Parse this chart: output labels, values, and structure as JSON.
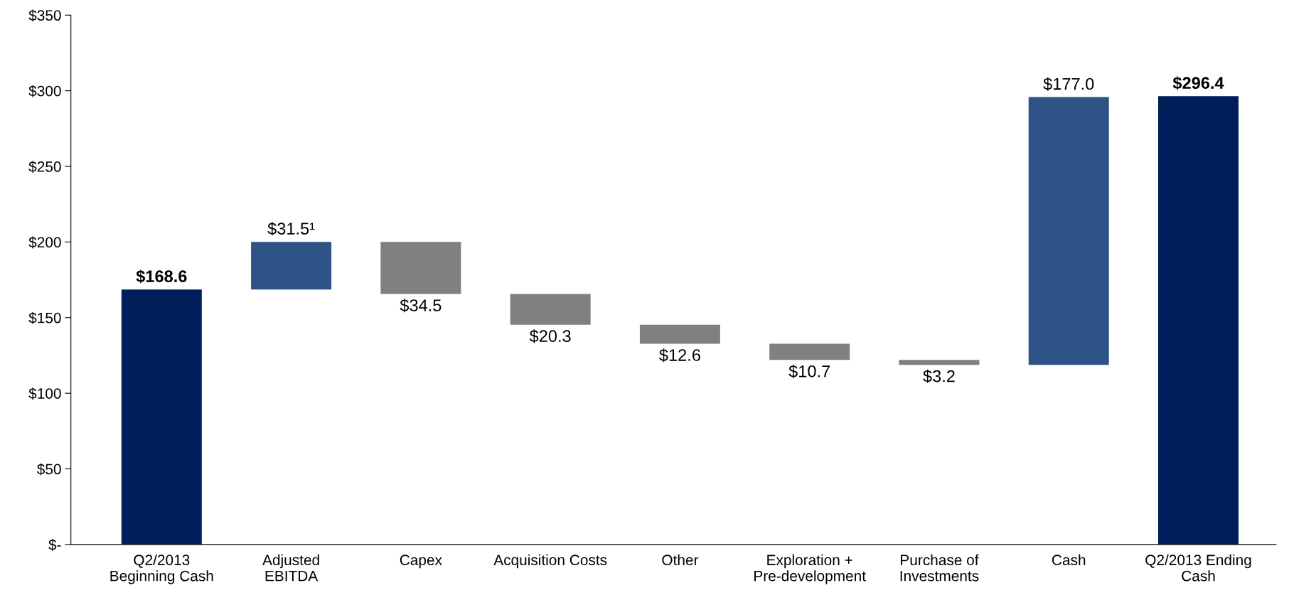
{
  "chart_data": {
    "type": "bar",
    "categories": [
      "Q2/2013\nBeginning Cash",
      "Adjusted\nEBITDA",
      "Capex",
      "Acquisition Costs",
      "Other",
      "Exploration +\nPre-development",
      "Purchase of\nInvestments",
      "Cash",
      "Q2/2013 Ending\nCash"
    ],
    "values": [
      168.6,
      31.5,
      -34.5,
      -20.3,
      -12.6,
      -10.7,
      -3.2,
      177.0,
      296.4
    ],
    "base": [
      0,
      168.6,
      200.1,
      165.6,
      145.3,
      132.7,
      122.0,
      118.8,
      0
    ],
    "colors": [
      "#001e5a",
      "#2e5487",
      "#808080",
      "#808080",
      "#808080",
      "#808080",
      "#808080",
      "#2e5487",
      "#001e5a"
    ],
    "value_labels": [
      "$168.6",
      "$31.5¹",
      "$34.5",
      "$20.3",
      "$12.6",
      "$10.7",
      "$3.2",
      "$177.0",
      "$296.4"
    ],
    "ylim": [
      0,
      350
    ],
    "yticks": [
      {
        "value": 0,
        "label": "$-"
      },
      {
        "value": 50,
        "label": "$50"
      },
      {
        "value": 100,
        "label": "$100"
      },
      {
        "value": 150,
        "label": "$150"
      },
      {
        "value": 200,
        "label": "$200"
      },
      {
        "value": 250,
        "label": "$250"
      },
      {
        "value": 300,
        "label": "$300"
      },
      {
        "value": 350,
        "label": "$350"
      }
    ],
    "grid": false,
    "legend": false
  }
}
